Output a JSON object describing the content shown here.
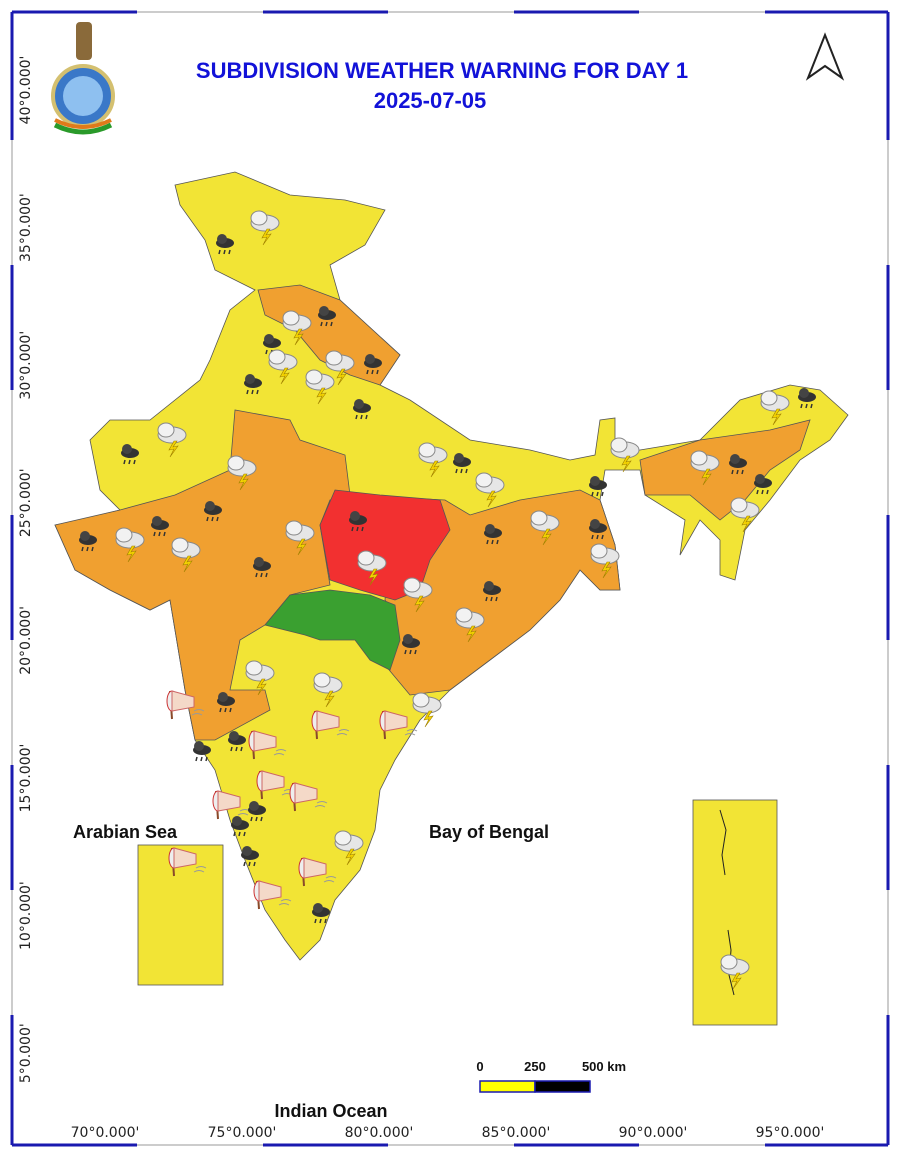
{
  "header": {
    "title": "SUBDIVISION WEATHER WARNING FOR DAY 1",
    "date": "2025-07-05"
  },
  "latitude_labels": [
    "40°0.000'",
    "35°0.000'",
    "30°0.000'",
    "25°0.000'",
    "20°0.000'",
    "15°0.000'",
    "10°0.000'",
    "5°0.000'"
  ],
  "longitude_labels": [
    "70°0.000'",
    "75°0.000'",
    "80°0.000'",
    "85°0.000'",
    "90°0.000'",
    "95°0.000'"
  ],
  "sea_labels": {
    "arabian_sea": "Arabian Sea",
    "bay_of_bengal": "Bay of Bengal",
    "indian_ocean": "Indian Ocean"
  },
  "scale_bar": [
    "0",
    "250",
    "500 km"
  ]
}
